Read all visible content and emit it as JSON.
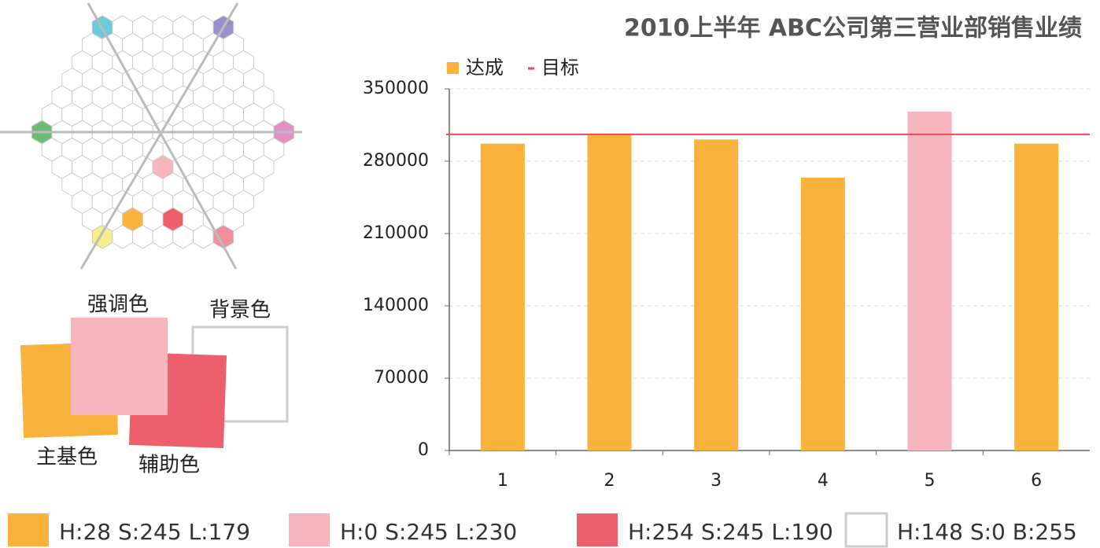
{
  "chart_data": {
    "type": "bar",
    "title": "2010上半年 ABC公司第三营业部销售业绩",
    "categories": [
      "1",
      "2",
      "3",
      "4",
      "5",
      "6"
    ],
    "series": [
      {
        "name": "达成",
        "color": "#f9b23b",
        "colors": [
          "#f9b23b",
          "#f9b23b",
          "#f9b23b",
          "#f9b23b",
          "#f7b5bd",
          "#f9b23b"
        ],
        "values": [
          297000,
          306000,
          301000,
          264000,
          328000,
          297000
        ]
      }
    ],
    "target": {
      "name": "目标",
      "color": "#e94a5a",
      "value": 306000
    },
    "ylim": [
      0,
      350000
    ],
    "yticks": [
      0,
      70000,
      140000,
      210000,
      280000,
      350000
    ],
    "grid": true
  },
  "swatches": {
    "accent": "强调色",
    "background": "背景色",
    "main": "主基色",
    "secondary": "辅助色"
  },
  "palette": [
    {
      "color": "#f9b23b",
      "label": "H:28  S:245  L:179"
    },
    {
      "color": "#f7b5bd",
      "label": "H:0  S:245  L:230"
    },
    {
      "color": "#ee5f6d",
      "label": "H:254  S:245  L:190"
    },
    {
      "color": "#ffffff",
      "label": "H:148  S:0  B:255"
    }
  ]
}
